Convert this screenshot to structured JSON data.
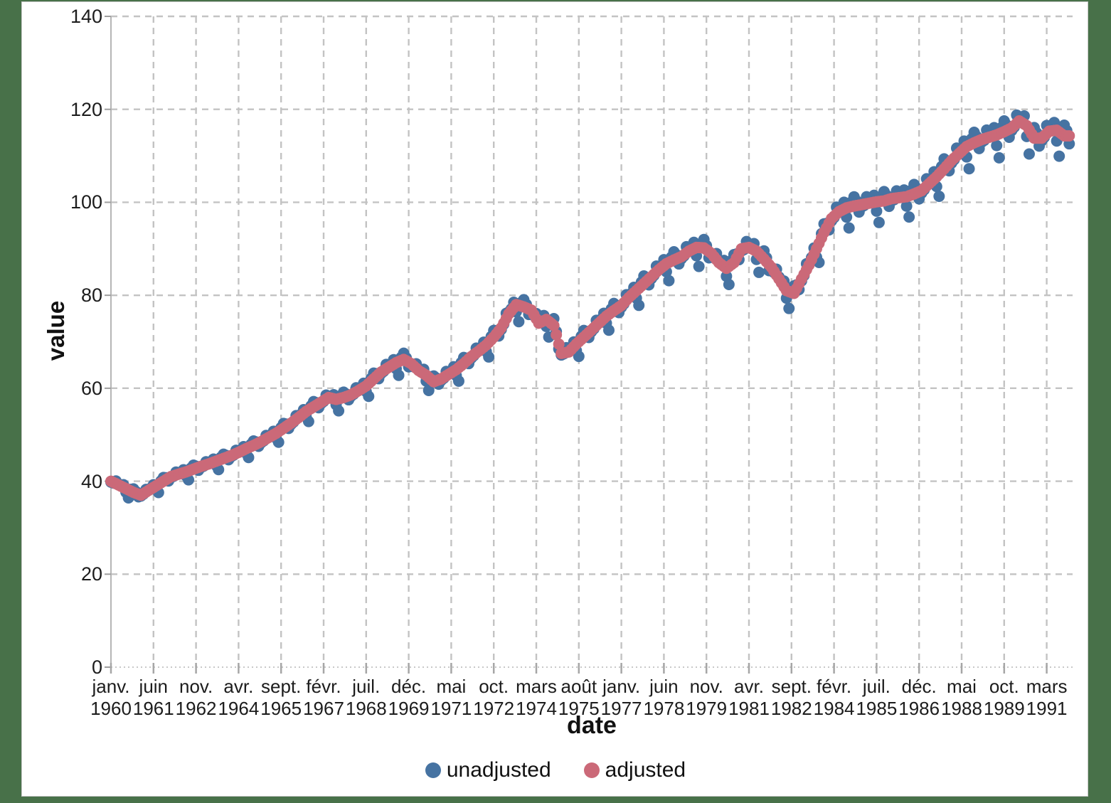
{
  "page": {
    "background_color": "#487149",
    "panel_color": "#ffffff"
  },
  "chart_data": {
    "type": "scatter",
    "title": "",
    "xlabel": "date",
    "ylabel": "value",
    "grid": "dashed gray, horizontal and vertical",
    "legend_position": "bottom-center",
    "y_axis": {
      "min": 0,
      "max": 140,
      "tick_step": 20,
      "tick_labels": [
        "0",
        "20",
        "40",
        "60",
        "80",
        "100",
        "120",
        "140"
      ]
    },
    "x_axis": {
      "start": "janv. 1960",
      "end": "déc. 1991",
      "months_total": 384,
      "tick_interval_months": 17,
      "tick_labels": [
        {
          "month": "janv.",
          "year": "1960"
        },
        {
          "month": "juin",
          "year": "1961"
        },
        {
          "month": "nov.",
          "year": "1962"
        },
        {
          "month": "avr.",
          "year": "1964"
        },
        {
          "month": "sept.",
          "year": "1965"
        },
        {
          "month": "févr.",
          "year": "1967"
        },
        {
          "month": "juil.",
          "year": "1968"
        },
        {
          "month": "déc.",
          "year": "1969"
        },
        {
          "month": "mai",
          "year": "1971"
        },
        {
          "month": "oct.",
          "year": "1972"
        },
        {
          "month": "mars",
          "year": "1974"
        },
        {
          "month": "août",
          "year": "1975"
        },
        {
          "month": "janv.",
          "year": "1977"
        },
        {
          "month": "juin",
          "year": "1978"
        },
        {
          "month": "nov.",
          "year": "1979"
        },
        {
          "month": "avr.",
          "year": "1981"
        },
        {
          "month": "sept.",
          "year": "1982"
        },
        {
          "month": "févr.",
          "year": "1984"
        },
        {
          "month": "juil.",
          "year": "1985"
        },
        {
          "month": "déc.",
          "year": "1986"
        },
        {
          "month": "mai",
          "year": "1988"
        },
        {
          "month": "oct.",
          "year": "1989"
        },
        {
          "month": "mars",
          "year": "1991"
        }
      ]
    },
    "marker_radius_px": 8,
    "series": [
      {
        "name": "unadjusted",
        "color": "#4673a2",
        "derivation": "adjusted monthly value multiplied by (1 + seasonal_pct_by_month/100)",
        "seasonal_pct_by_month": [
          -0.5,
          -0.3,
          1.5,
          0.5,
          0.5,
          1.5,
          -2.0,
          -4.5,
          1.0,
          2.0,
          1.0,
          -1.5
        ]
      },
      {
        "name": "adjusted",
        "color": "#cb6978",
        "quarterly_start": "janv. 1960",
        "quarterly_values": [
          40.0,
          39.2,
          38.4,
          37.6,
          37.0,
          38.0,
          39.0,
          40.0,
          41.0,
          41.5,
          42.0,
          42.6,
          43.2,
          43.7,
          44.3,
          44.9,
          45.5,
          46.2,
          47.0,
          47.7,
          48.5,
          49.4,
          50.3,
          51.4,
          52.5,
          53.7,
          55.0,
          56.0,
          57.0,
          58.0,
          57.6,
          58.0,
          58.6,
          59.5,
          60.5,
          62.0,
          63.5,
          64.5,
          65.5,
          66.2,
          65.3,
          63.8,
          62.8,
          61.4,
          62.0,
          63.0,
          64.0,
          65.3,
          66.8,
          68.0,
          69.3,
          71.0,
          73.0,
          76.0,
          78.0,
          77.5,
          76.8,
          74.0,
          74.8,
          73.5,
          67.5,
          67.8,
          69.5,
          71.0,
          72.5,
          74.0,
          75.5,
          76.7,
          77.8,
          79.5,
          81.0,
          82.5,
          84.0,
          85.5,
          86.8,
          87.6,
          88.3,
          89.5,
          90.3,
          90.2,
          89.0,
          87.0,
          85.8,
          87.0,
          90.0,
          90.3,
          89.5,
          87.8,
          86.0,
          83.5,
          81.0,
          80.4,
          83.5,
          86.5,
          90.0,
          93.5,
          96.5,
          98.0,
          98.8,
          99.2,
          99.5,
          99.8,
          100.1,
          100.3,
          100.8,
          101.0,
          101.2,
          101.8,
          102.5,
          104.0,
          105.5,
          107.2,
          109.0,
          110.5,
          112.0,
          112.8,
          113.5,
          114.0,
          114.5,
          115.2,
          116.0,
          117.5,
          116.5,
          113.8,
          113.8,
          115.3,
          115.5,
          114.3
        ]
      }
    ]
  }
}
